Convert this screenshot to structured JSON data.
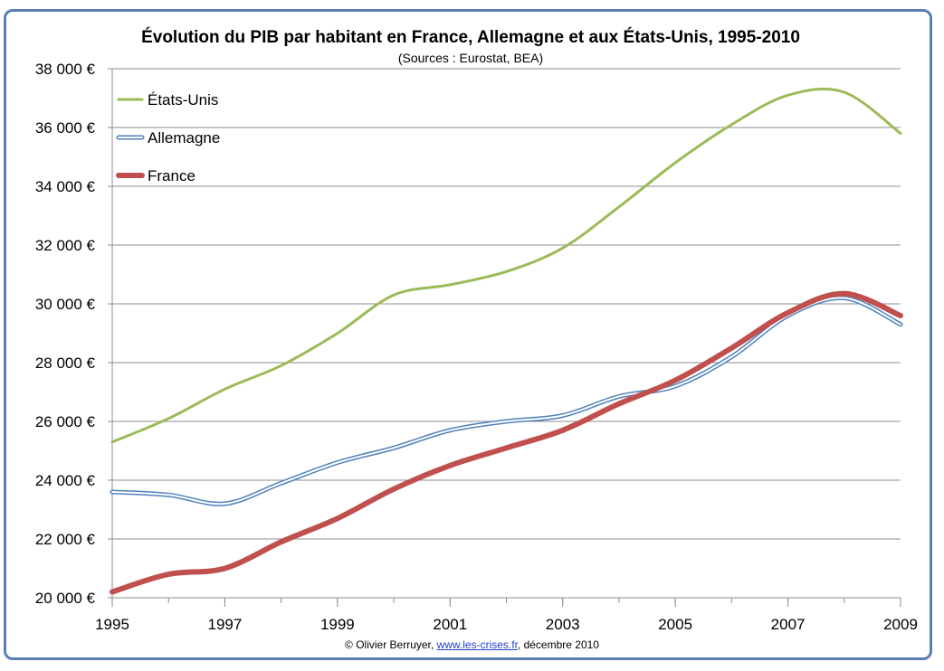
{
  "chart_data": {
    "type": "line",
    "title": "Évolution du PIB par habitant en France, Allemagne et aux États-Unis, 1995-2010",
    "subtitle": "(Sources : Eurostat, BEA)",
    "x": [
      1995,
      1996,
      1997,
      1998,
      1999,
      2000,
      2001,
      2002,
      2003,
      2004,
      2005,
      2006,
      2007,
      2008,
      2009
    ],
    "xticks": [
      "1995",
      "1997",
      "1999",
      "2001",
      "2003",
      "2005",
      "2007",
      "2009"
    ],
    "yticks": [
      "20 000 €",
      "22 000 €",
      "24 000 €",
      "26 000 €",
      "28 000 €",
      "30 000 €",
      "32 000 €",
      "34 000 €",
      "36 000 €",
      "38 000 €"
    ],
    "ylim": [
      20000,
      38000
    ],
    "xlim": [
      1995,
      2009
    ],
    "grid": "horizontal",
    "legend_position": "top-left",
    "series": [
      {
        "name": "États-Unis",
        "color": "#9bbb59",
        "style": "solid",
        "values": [
          25300,
          26100,
          27100,
          27900,
          29000,
          30300,
          30650,
          31100,
          31900,
          33300,
          34800,
          36100,
          37100,
          37200,
          35800
        ]
      },
      {
        "name": "Allemagne",
        "color": "#4f81bd",
        "style": "double",
        "values": [
          23600,
          23500,
          23200,
          23900,
          24600,
          25100,
          25700,
          26000,
          26200,
          26850,
          27200,
          28200,
          29600,
          30200,
          29300
        ]
      },
      {
        "name": "France",
        "color": "#c0504d",
        "style": "thick",
        "values": [
          20200,
          20800,
          21000,
          21900,
          22700,
          23700,
          24500,
          25100,
          25700,
          26600,
          27400,
          28500,
          29700,
          30350,
          29600
        ]
      }
    ]
  },
  "footer": {
    "prefix": "© Olivier  Berruyer, ",
    "link": "www.les-crises.fr",
    "suffix": ",  décembre  2010"
  }
}
